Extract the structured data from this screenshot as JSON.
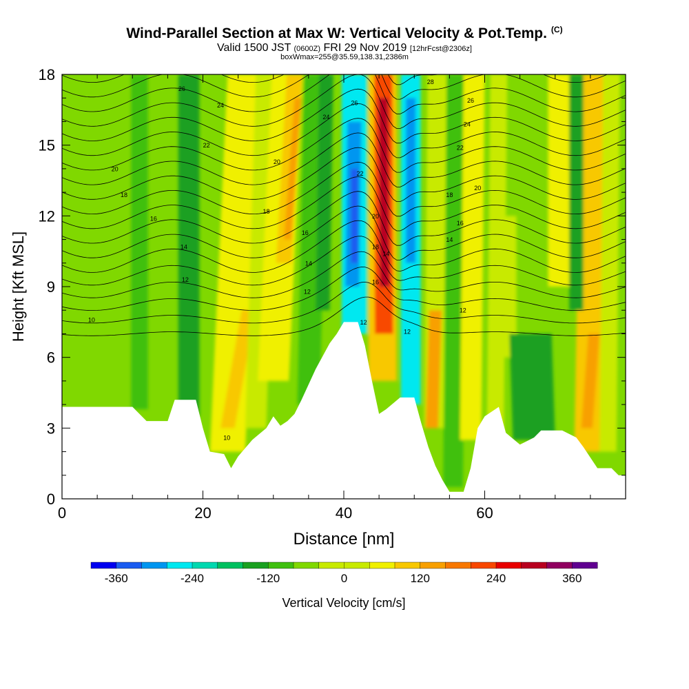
{
  "header": {
    "title": "Wind-Parallel Section at Max W: Vertical Velocity & Pot.Temp.",
    "copyright": "(C)",
    "valid_prefix": "Valid 1500 JST",
    "valid_utc": "(0600Z)",
    "valid_date": "FRI 29 Nov 2019",
    "forecast": "[12hrFcst@2306z]",
    "box_info": "boxWmax=255@35.59,138.31,2386m"
  },
  "colors": {
    "terrain": "#ffffff",
    "contour": "#000000",
    "palette": [
      "#0000f0",
      "#1a5cf0",
      "#0096f0",
      "#00e8f0",
      "#00d8b0",
      "#00c060",
      "#1aa020",
      "#40c010",
      "#80d800",
      "#c8ea00",
      "#f0f000",
      "#f8c800",
      "#f8a000",
      "#f87800",
      "#f84800",
      "#e80000",
      "#b80020",
      "#900060",
      "#600090"
    ]
  },
  "chart_data": {
    "type": "heatmap",
    "xlabel": "Distance [nm]",
    "ylabel": "Height [Kft MSL]",
    "xlim": [
      0,
      80
    ],
    "ylim": [
      0,
      18
    ],
    "xticks": [
      "0",
      "20",
      "40",
      "60"
    ],
    "xtick_values": [
      0,
      20,
      40,
      60
    ],
    "yticks": [
      "0",
      "3",
      "6",
      "9",
      "12",
      "15",
      "18"
    ],
    "ytick_values": [
      0,
      3,
      6,
      9,
      12,
      15,
      18
    ],
    "colorbar": {
      "label": "Vertical Velocity [cm/s]",
      "min": -400,
      "max": 400,
      "step": 40,
      "tick_labels": [
        "-360",
        "-240",
        "-120",
        "0",
        "120",
        "240",
        "360"
      ],
      "tick_values": [
        -360,
        -240,
        -120,
        0,
        120,
        240,
        360
      ]
    },
    "terrain": [
      [
        0,
        3.9
      ],
      [
        10,
        3.9
      ],
      [
        12,
        3.3
      ],
      [
        15,
        3.3
      ],
      [
        16,
        4.2
      ],
      [
        19,
        4.2
      ],
      [
        20,
        3
      ],
      [
        21,
        2
      ],
      [
        23,
        1.9
      ],
      [
        24,
        1.3
      ],
      [
        25,
        1.8
      ],
      [
        27,
        2.5
      ],
      [
        29,
        3
      ],
      [
        30,
        3.5
      ],
      [
        31,
        3.1
      ],
      [
        32,
        3.3
      ],
      [
        33,
        3.6
      ],
      [
        34,
        4.2
      ],
      [
        36,
        5.5
      ],
      [
        38,
        6.6
      ],
      [
        39,
        7
      ],
      [
        40,
        7.5
      ],
      [
        42,
        7.5
      ],
      [
        43,
        6.5
      ],
      [
        44,
        5
      ],
      [
        45,
        3.6
      ],
      [
        46,
        3.8
      ],
      [
        48,
        4.3
      ],
      [
        50,
        4.3
      ],
      [
        51,
        3.2
      ],
      [
        52,
        2.2
      ],
      [
        53,
        1.4
      ],
      [
        54,
        0.8
      ],
      [
        55,
        0.3
      ],
      [
        57,
        0.3
      ],
      [
        58,
        1.3
      ],
      [
        59,
        3
      ],
      [
        60,
        3.5
      ],
      [
        62,
        3.9
      ],
      [
        63,
        2.8
      ],
      [
        65,
        2.3
      ],
      [
        67,
        2.6
      ],
      [
        68,
        2.9
      ],
      [
        71,
        2.9
      ],
      [
        73,
        2.6
      ],
      [
        74,
        2.2
      ],
      [
        76,
        1.3
      ],
      [
        78,
        1.3
      ],
      [
        79,
        1
      ],
      [
        80,
        1
      ]
    ],
    "contour_labels": [
      {
        "value": "10",
        "x": 4.2,
        "y": 7.6
      },
      {
        "value": "10",
        "x": 23.4,
        "y": 2.6
      },
      {
        "value": "12",
        "x": 17.5,
        "y": 9.3
      },
      {
        "value": "12",
        "x": 34.8,
        "y": 8.8
      },
      {
        "value": "12",
        "x": 42.8,
        "y": 7.5
      },
      {
        "value": "12",
        "x": 49.0,
        "y": 7.1
      },
      {
        "value": "12",
        "x": 56.9,
        "y": 8.0
      },
      {
        "value": "14",
        "x": 17.3,
        "y": 10.7
      },
      {
        "value": "14",
        "x": 35.0,
        "y": 10.0
      },
      {
        "value": "14",
        "x": 46.0,
        "y": 10.4
      },
      {
        "value": "14",
        "x": 55.0,
        "y": 11.0
      },
      {
        "value": "16",
        "x": 13.0,
        "y": 11.9
      },
      {
        "value": "16",
        "x": 34.5,
        "y": 11.3
      },
      {
        "value": "16",
        "x": 44.5,
        "y": 9.2
      },
      {
        "value": "16",
        "x": 56.5,
        "y": 11.7
      },
      {
        "value": "18",
        "x": 8.8,
        "y": 12.9
      },
      {
        "value": "18",
        "x": 29.0,
        "y": 12.2
      },
      {
        "value": "18",
        "x": 44.5,
        "y": 10.7
      },
      {
        "value": "18",
        "x": 55.0,
        "y": 12.9
      },
      {
        "value": "20",
        "x": 7.5,
        "y": 14.0
      },
      {
        "value": "20",
        "x": 30.5,
        "y": 14.3
      },
      {
        "value": "20",
        "x": 44.5,
        "y": 12.0
      },
      {
        "value": "20",
        "x": 59.0,
        "y": 13.2
      },
      {
        "value": "22",
        "x": 20.5,
        "y": 15.0
      },
      {
        "value": "22",
        "x": 42.3,
        "y": 13.8
      },
      {
        "value": "22",
        "x": 56.5,
        "y": 14.9
      },
      {
        "value": "24",
        "x": 22.5,
        "y": 16.7
      },
      {
        "value": "24",
        "x": 37.5,
        "y": 16.2
      },
      {
        "value": "24",
        "x": 57.5,
        "y": 15.9
      },
      {
        "value": "26",
        "x": 41.5,
        "y": 16.8
      },
      {
        "value": "26",
        "x": 58.0,
        "y": 16.9
      },
      {
        "value": "26",
        "x": 17.0,
        "y": 17.4
      },
      {
        "value": "28",
        "x": 52.3,
        "y": 17.7
      }
    ]
  }
}
